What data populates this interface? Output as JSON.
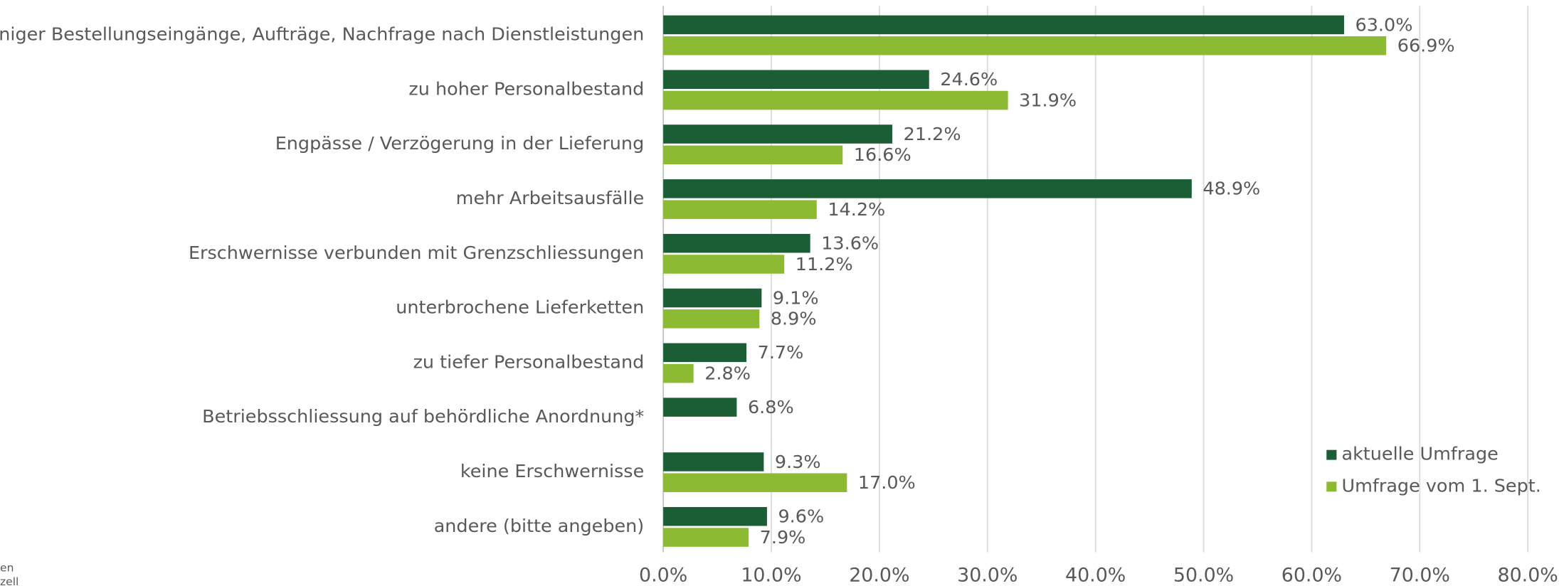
{
  "chart_data": {
    "type": "hbar",
    "categories": [
      "weniger Bestellungseingänge, Aufträge, Nachfrage nach Dienstleistungen",
      "zu hoher Personalbestand",
      "Engpässe / Verzögerung in der Lieferung",
      "mehr Arbeitsausfälle",
      "Erschwernisse verbunden mit Grenzschliessungen",
      "unterbrochene Lieferketten",
      "zu tiefer Personalbestand",
      "Betriebsschliessung auf behördliche Anordnung*",
      "keine Erschwernisse",
      "andere (bitte angeben)"
    ],
    "series": [
      {
        "name": "aktuelle Umfrage",
        "color": "#1b5e36",
        "values": [
          63.0,
          24.6,
          21.2,
          48.9,
          13.6,
          9.1,
          7.7,
          6.8,
          9.3,
          9.6
        ],
        "value_labels": [
          "63.0%",
          "24.6%",
          "21.2%",
          "48.9%",
          "13.6%",
          "9.1%",
          "7.7%",
          "6.8%",
          "9.3%",
          "9.6%"
        ]
      },
      {
        "name": "Umfrage vom 1. Sept.",
        "color": "#8cbb33",
        "values": [
          66.9,
          31.9,
          16.6,
          14.2,
          11.2,
          8.9,
          2.8,
          null,
          17.0,
          7.9
        ],
        "value_labels": [
          "66.9%",
          "31.9%",
          "16.6%",
          "14.2%",
          "11.2%",
          "8.9%",
          "2.8%",
          null,
          "17.0%",
          "7.9%"
        ]
      }
    ],
    "xlim": [
      0,
      80
    ],
    "xticks": [
      {
        "value": 0,
        "label": "0.0%"
      },
      {
        "value": 10,
        "label": "10.0%"
      },
      {
        "value": 20,
        "label": "20.0%"
      },
      {
        "value": 30,
        "label": "30.0%"
      },
      {
        "value": 40,
        "label": "40.0%"
      },
      {
        "value": 50,
        "label": "50.0%"
      },
      {
        "value": 60,
        "label": "60.0%"
      },
      {
        "value": 70,
        "label": "70.0%"
      },
      {
        "value": 80,
        "label": "80.0%"
      }
    ],
    "grid": true,
    "legend": "lower right",
    "side_notes": [
      "en",
      "zell"
    ]
  }
}
